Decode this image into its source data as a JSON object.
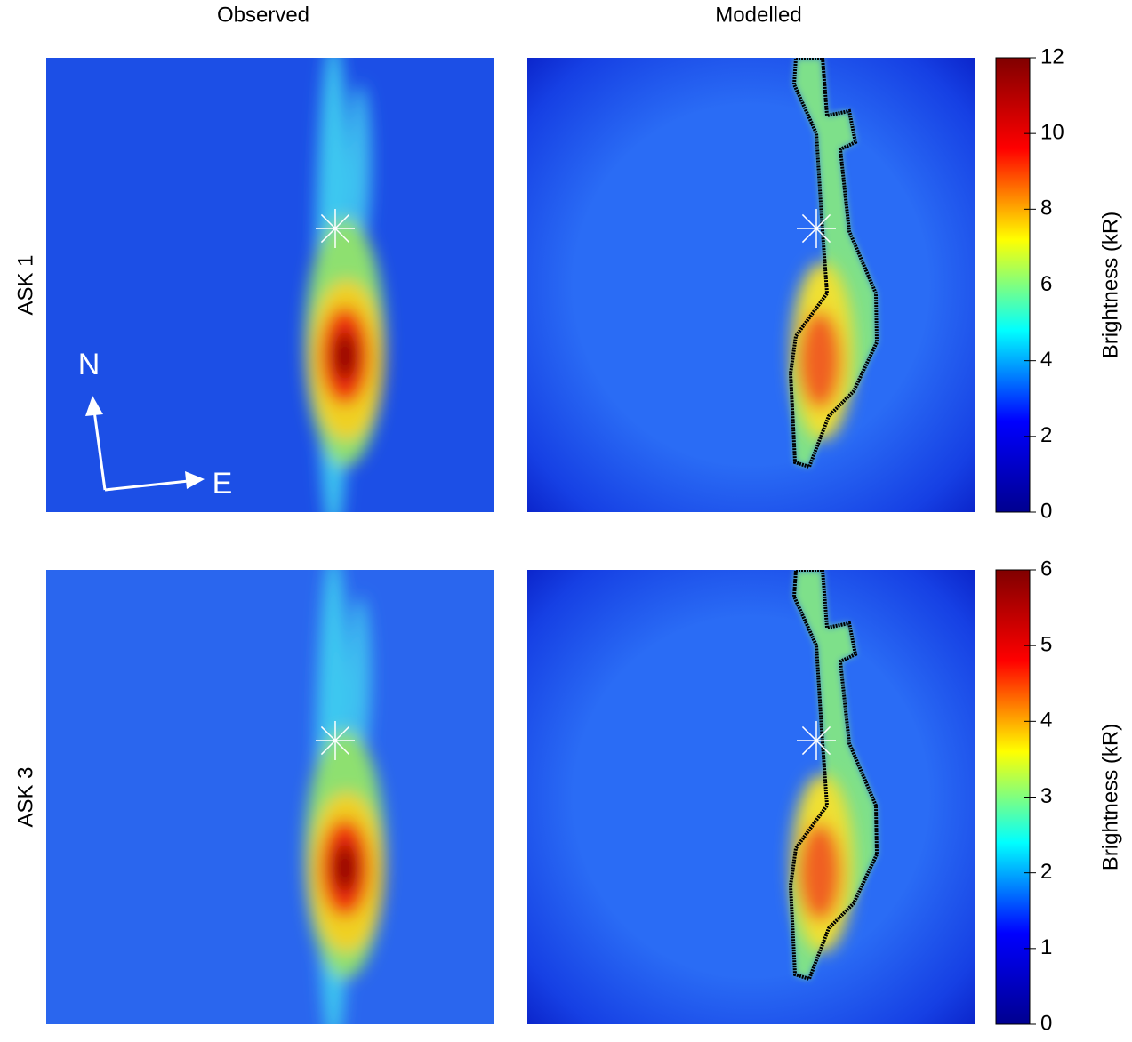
{
  "column_titles": [
    "Observed",
    "Modelled"
  ],
  "compass": {
    "north": "N",
    "east": "E"
  },
  "chart_data": [
    {
      "type": "heatmap",
      "row_label": "ASK 1",
      "colorbar_label": "Brightness (kR)",
      "colormap": [
        "#00008f",
        "#0000ff",
        "#00ffff",
        "#ffff00",
        "#ff0000",
        "#800000"
      ],
      "ylim": [
        0,
        12
      ],
      "yticks": [
        0,
        2,
        4,
        6,
        8,
        10,
        12
      ]
    },
    {
      "type": "heatmap",
      "row_label": "ASK 3",
      "colorbar_label": "Brightness (kR)",
      "colormap": [
        "#00008f",
        "#0000ff",
        "#00ffff",
        "#ffff00",
        "#ff0000",
        "#800000"
      ],
      "ylim": [
        0,
        6
      ],
      "yticks": [
        0,
        1,
        2,
        3,
        4,
        5,
        6
      ]
    }
  ]
}
